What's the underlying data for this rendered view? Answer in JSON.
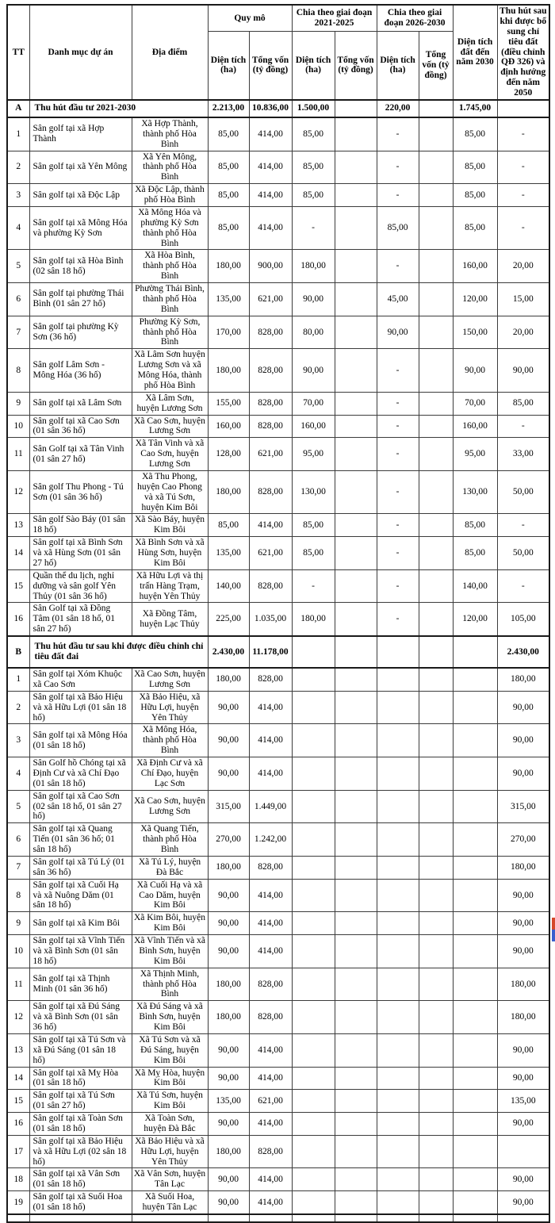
{
  "colors": {
    "border": "#3c3c3c",
    "strong_border": "#1a1a1a",
    "text": "#000000",
    "background": "#ffffff",
    "artifact_red": "#d5482a",
    "artifact_blue": "#3a5fcd"
  },
  "header": {
    "tt": "TT",
    "project": "Danh mục dự án",
    "location": "Địa điểm",
    "scale_group": "Quy mô",
    "stage1_group": "Chia theo giai đoạn 2021-2025",
    "stage2_group": "Chia theo giai đoạn 2026-2030",
    "area_sub": "Diện tích (ha)",
    "capital_sub": "Tổng vốn (tỷ đồng)",
    "land_2030": "Diện tích đất đến năm 2030",
    "post_adjust": "Thu hút sau khi được bổ sung chỉ tiêu đất (điều chỉnh QĐ 326) và định hướng đến năm 2050"
  },
  "rows": [
    {
      "type": "section",
      "cls": "section-a",
      "tt": "A",
      "label": "Thu hút đầu tư 2021-2030",
      "values": [
        "2.213,00",
        "10.836,00",
        "1.500,00",
        "",
        "220,00",
        "",
        "1.745,00",
        ""
      ]
    },
    {
      "type": "item",
      "tt": "1",
      "project": "Sân golf tại xã Hợp Thành",
      "location": "Xã Hợp Thành, thành phố Hòa Bình",
      "values": [
        "85,00",
        "414,00",
        "85,00",
        "",
        "-",
        "",
        "85,00",
        "-"
      ]
    },
    {
      "type": "item",
      "tt": "2",
      "project": "Sân golf tại xã Yên Mông",
      "location": "Xã Yên Mông, thành phố Hòa Bình",
      "values": [
        "85,00",
        "414,00",
        "85,00",
        "",
        "-",
        "",
        "85,00",
        "-"
      ]
    },
    {
      "type": "item",
      "tt": "3",
      "project": "Sân golf tại xã Độc Lập",
      "location": "Xã Độc Lập, thành phố Hòa Bình",
      "values": [
        "85,00",
        "414,00",
        "85,00",
        "",
        "-",
        "",
        "85,00",
        "-"
      ]
    },
    {
      "type": "item",
      "tt": "4",
      "project": "Sân golf tại xã Mông Hóa và phường Kỳ Sơn",
      "location": "Xã Mông Hóa và phường Kỳ Sơn thành phố Hòa Bình",
      "values": [
        "85,00",
        "414,00",
        "-",
        "",
        "85,00",
        "",
        "85,00",
        "-"
      ]
    },
    {
      "type": "item",
      "tt": "5",
      "project": "Sân golf tại xã Hòa Bình (02 sân 18 hố)",
      "location": "Xã Hòa Bình, thành phố Hòa Bình",
      "values": [
        "180,00",
        "900,00",
        "180,00",
        "",
        "-",
        "",
        "160,00",
        "20,00"
      ]
    },
    {
      "type": "item",
      "tt": "6",
      "project": "Sân golf tại phường Thái Bình (01 sân 27 hố)",
      "location": "Phường Thái Bình, thành phố Hòa Bình",
      "values": [
        "135,00",
        "621,00",
        "90,00",
        "",
        "45,00",
        "",
        "120,00",
        "15,00"
      ]
    },
    {
      "type": "item",
      "tt": "7",
      "project": "Sân golf tại phường Kỳ Sơn (36 hố)",
      "location": "Phường Kỳ Sơn, thành phố Hòa Bình",
      "values": [
        "170,00",
        "828,00",
        "80,00",
        "",
        "90,00",
        "",
        "150,00",
        "20,00"
      ]
    },
    {
      "type": "item",
      "tt": "8",
      "project": "Sân golf Lâm Sơn - Mông Hóa (36 hố)",
      "location": "Xã Lâm Sơn huyện Lương Sơn và xã Mông Hóa, thành phố Hòa Bình",
      "values": [
        "180,00",
        "828,00",
        "90,00",
        "",
        "-",
        "",
        "90,00",
        "90,00"
      ]
    },
    {
      "type": "item",
      "tt": "9",
      "project": "Sân golf tại xã Lâm Sơn",
      "location": "Xã Lâm Sơn, huyện Lương Sơn",
      "values": [
        "155,00",
        "828,00",
        "70,00",
        "",
        "-",
        "",
        "70,00",
        "85,00"
      ]
    },
    {
      "type": "item",
      "tt": "10",
      "project": "Sân golf tại xã Cao Sơn (01 sân 36 hố)",
      "location": "Xã Cao Sơn, huyện Lương Sơn",
      "values": [
        "160,00",
        "828,00",
        "160,00",
        "",
        "-",
        "",
        "160,00",
        "-"
      ]
    },
    {
      "type": "item",
      "tt": "11",
      "project": "Sân Golf tại xã Tân Vinh (01 sân 27 hố)",
      "location": "Xã Tân Vinh và xã Cao Sơn, huyện Lương Sơn",
      "values": [
        "128,00",
        "621,00",
        "95,00",
        "",
        "-",
        "",
        "95,00",
        "33,00"
      ]
    },
    {
      "type": "item",
      "tt": "12",
      "project": "Sân golf Thu Phong - Tú Sơn (01 sân 36 hố)",
      "location": "Xã Thu Phong, huyện Cao Phong và xã Tú Sơn, huyện Kim Bôi",
      "values": [
        "180,00",
        "828,00",
        "130,00",
        "",
        "-",
        "",
        "130,00",
        "50,00"
      ]
    },
    {
      "type": "item",
      "tt": "13",
      "project": "Sân golf Sào Báy (01 sân 18 hố)",
      "location": "Xã Sào Báy, huyện Kim Bôi",
      "values": [
        "85,00",
        "414,00",
        "85,00",
        "",
        "-",
        "",
        "85,00",
        "-"
      ]
    },
    {
      "type": "item",
      "tt": "14",
      "project": "Sân golf tại xã Bình Sơn và xã Hùng Sơn (01 sân 27 hố)",
      "location": "Xã Bình Sơn và xã Hùng Sơn, huyện Kim Bôi",
      "values": [
        "135,00",
        "621,00",
        "85,00",
        "",
        "-",
        "",
        "85,00",
        "50,00"
      ]
    },
    {
      "type": "item",
      "tt": "15",
      "project": "Quần thể du lịch, nghỉ dưỡng và sân golf Yên Thủy (01 sân 36 hố)",
      "location": "Xã Hữu Lợi và thị trấn Hàng Trạm, huyện Yên Thủy",
      "values": [
        "140,00",
        "828,00",
        "-",
        "",
        "-",
        "",
        "140,00",
        "-"
      ]
    },
    {
      "type": "item",
      "tt": "16",
      "project": "Sân Golf tại xã Đồng Tâm (01 sân 18 hố, 01 sân 27 hố)",
      "location": "Xã Đồng Tâm, huyện Lạc Thủy",
      "values": [
        "225,00",
        "1.035,00",
        "180,00",
        "",
        "-",
        "",
        "120,00",
        "105,00"
      ]
    },
    {
      "type": "section",
      "cls": "section-b",
      "tt": "B",
      "label": "Thu hút đầu tư sau khi được điều chỉnh chỉ tiêu đất đai",
      "values": [
        "2.430,00",
        "11.178,00",
        "",
        "",
        "",
        "",
        "",
        "2.430,00"
      ]
    },
    {
      "type": "item",
      "tt": "1",
      "project": "Sân golf tại Xóm Khuộc xã Cao Sơn",
      "location": "Xã Cao Sơn, huyện Lương Sơn",
      "values": [
        "180,00",
        "828,00",
        "",
        "",
        "",
        "",
        "",
        "180,00"
      ]
    },
    {
      "type": "item",
      "tt": "2",
      "project": "Sân golf tại xã Bảo Hiệu và xã Hữu Lợi (01 sân 18 hố)",
      "location": "Xã Bảo Hiệu, xã Hữu Lợi, huyện Yên Thủy",
      "values": [
        "90,00",
        "414,00",
        "",
        "",
        "",
        "",
        "",
        "90,00"
      ]
    },
    {
      "type": "item",
      "tt": "3",
      "project": "Sân golf tại xã Mông Hóa (01 sân 18 hố)",
      "location": "Xã Mông Hóa, thành phố Hòa Bình",
      "values": [
        "90,00",
        "414,00",
        "",
        "",
        "",
        "",
        "",
        "90,00"
      ]
    },
    {
      "type": "item",
      "tt": "4",
      "project": "Sân Golf hồ Chóng tại xã Định Cư và xã Chí Đạo (01 sân 18 hố)",
      "location": "Xã Định Cư và xã Chí Đạo, huyện Lạc Sơn",
      "values": [
        "90,00",
        "414,00",
        "",
        "",
        "",
        "",
        "",
        "90,00"
      ]
    },
    {
      "type": "item",
      "tt": "5",
      "project": "Sân golf tại xã Cao Sơn (02 sân 18 hố, 01 sân 27 hố)",
      "location": "Xã Cao Sơn, huyện Lương Sơn",
      "values": [
        "315,00",
        "1.449,00",
        "",
        "",
        "",
        "",
        "",
        "315,00"
      ]
    },
    {
      "type": "item",
      "tt": "6",
      "project": "Sân golf tại xã Quang Tiến (01 sân 36 hố; 01 sân 18 hố)",
      "location": "Xã Quang Tiến, thành phố Hòa Bình",
      "values": [
        "270,00",
        "1.242,00",
        "",
        "",
        "",
        "",
        "",
        "270,00"
      ]
    },
    {
      "type": "item",
      "tt": "7",
      "project": "Sân golf tại xã Tú Lý (01 sân 36 hố)",
      "location": "Xã Tú Lý, huyện Đà Bắc",
      "values": [
        "180,00",
        "828,00",
        "",
        "",
        "",
        "",
        "",
        "180,00"
      ]
    },
    {
      "type": "item",
      "tt": "8",
      "project": "Sân golf tại xã Cuối Hạ và xã Nuông Dăm (01 sân 18 hố)",
      "location": "Xã Cuối Hạ và xã Cao Dăm, huyện Kim Bôi",
      "values": [
        "90,00",
        "414,00",
        "",
        "",
        "",
        "",
        "",
        "90,00"
      ]
    },
    {
      "type": "item",
      "tt": "9",
      "project": "Sân golf tại xã Kim Bôi",
      "location": "Xã Kim Bôi, huyện Kim Bôi",
      "values": [
        "90,00",
        "414,00",
        "",
        "",
        "",
        "",
        "",
        "90,00"
      ]
    },
    {
      "type": "item",
      "tt": "10",
      "project": "Sân golf tại xã Vĩnh Tiến và xã Bình Sơn (01 sân 18 hố)",
      "location": "Xã Vĩnh Tiến và xã Bình Sơn, huyện Kim Bôi",
      "values": [
        "90,00",
        "414,00",
        "",
        "",
        "",
        "",
        "",
        "90,00"
      ]
    },
    {
      "type": "item",
      "tt": "11",
      "project": "Sân golf tại xã Thịnh Minh (01 sân 36 hố)",
      "location": "Xã Thịnh Minh, thành phố Hòa Bình",
      "values": [
        "180,00",
        "828,00",
        "",
        "",
        "",
        "",
        "",
        "180,00"
      ]
    },
    {
      "type": "item",
      "tt": "12",
      "project": "Sân golf tại xã Đú Sáng và xã Bình Sơn (01 sân 36 hố)",
      "location": "Xã Đú Sáng và xã Bình Sơn, huyện Kim Bôi",
      "values": [
        "180,00",
        "828,00",
        "",
        "",
        "",
        "",
        "",
        "180,00"
      ]
    },
    {
      "type": "item",
      "tt": "13",
      "project": "Sân golf tại xã Tú Sơn và xã Đú Sáng (01 sân 18 hố)",
      "location": "Xã Tú Sơn và xã Đú Sáng, huyện Kim Bôi",
      "values": [
        "90,00",
        "414,00",
        "",
        "",
        "",
        "",
        "",
        "90,00"
      ]
    },
    {
      "type": "item",
      "tt": "14",
      "project": "Sân golf tại xã Mỵ Hòa (01 sân 18 hố)",
      "location": "Xã Mỵ Hòa, huyện Kim Bôi",
      "values": [
        "90,00",
        "414,00",
        "",
        "",
        "",
        "",
        "",
        "90,00"
      ]
    },
    {
      "type": "item",
      "tt": "15",
      "project": "Sân golf tại xã Tú Sơn (01 sân 27 hố)",
      "location": "Xã Tú Sơn, huyện Kim Bôi",
      "values": [
        "135,00",
        "621,00",
        "",
        "",
        "",
        "",
        "",
        "135,00"
      ]
    },
    {
      "type": "item",
      "tt": "16",
      "project": "Sân golf tại xã Toàn Sơn (01 sân 18 hố)",
      "location": "Xã Toàn Sơn, huyện Đà Bắc",
      "values": [
        "90,00",
        "414,00",
        "",
        "",
        "",
        "",
        "",
        "90,00"
      ]
    },
    {
      "type": "item",
      "tt": "17",
      "project": "Sân golf tại xã Bảo Hiệu và xã Hữu Lợi (02 sân 18 hố)",
      "location": "Xã Bảo Hiệu và xã Hữu Lợi, huyện Yên Thủy",
      "values": [
        "180,00",
        "828,00",
        "",
        "",
        "",
        "",
        "",
        ""
      ]
    },
    {
      "type": "item",
      "tt": "18",
      "project": "Sân golf tại xã Vân Sơn (01 sân 18 hố)",
      "location": "Xã Vân Sơn, huyện Tân Lạc",
      "values": [
        "90,00",
        "414,00",
        "",
        "",
        "",
        "",
        "",
        "90,00"
      ]
    },
    {
      "type": "item",
      "tt": "19",
      "project": "Sân golf tại xã Suối Hoa (01 sân 18 hố)",
      "location": "Xã Suối Hoa, huyện Tân Lạc",
      "values": [
        "90,00",
        "414,00",
        "",
        "",
        "",
        "",
        "",
        "90,00"
      ]
    }
  ]
}
